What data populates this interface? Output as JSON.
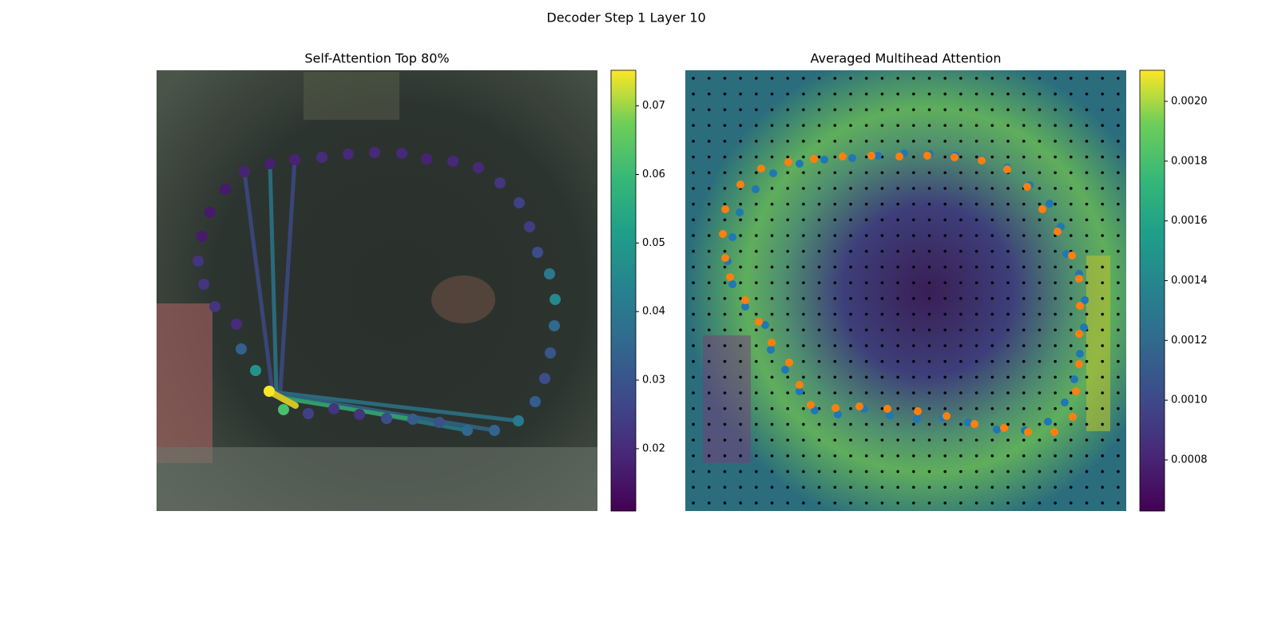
{
  "title": "Decoder Step 1 Layer 10",
  "chart_data": [
    {
      "type": "scatter",
      "title": "Self-Attention Top 80%",
      "x": [
        110,
        142,
        173,
        207,
        240,
        273,
        307,
        338,
        371,
        403,
        430,
        454,
        467,
        477,
        492,
        499,
        498,
        493,
        486,
        474,
        453,
        423,
        389,
        354,
        321,
        288,
        254,
        222,
        190,
        159,
        141,
        124,
        106,
        100,
        73,
        59,
        52,
        57,
        67,
        86
      ],
      "y": [
        127,
        117,
        112,
        109,
        105,
        103,
        104,
        111,
        114,
        122,
        141,
        166,
        196,
        228,
        255,
        287,
        320,
        354,
        386,
        415,
        439,
        451,
        451,
        441,
        437,
        436,
        431,
        424,
        430,
        425,
        402,
        376,
        349,
        318,
        296,
        268,
        239,
        208,
        178,
        149
      ],
      "values": [
        0.018,
        0.017,
        0.018,
        0.02,
        0.019,
        0.019,
        0.019,
        0.018,
        0.019,
        0.019,
        0.022,
        0.025,
        0.024,
        0.028,
        0.04,
        0.045,
        0.035,
        0.03,
        0.028,
        0.032,
        0.04,
        0.034,
        0.035,
        0.029,
        0.032,
        0.028,
        0.022,
        0.022,
        0.025,
        0.062,
        0.075,
        0.048,
        0.033,
        0.02,
        0.022,
        0.022,
        0.022,
        0.016,
        0.016,
        0.016
      ],
      "colorbar": {
        "lim": [
          0.0109,
          0.0752
        ],
        "ticks": [
          0.02,
          0.03,
          0.04,
          0.05,
          0.06,
          0.07
        ]
      }
    },
    {
      "type": "scatter",
      "title": "Averaged Multihead Attention",
      "series": [
        {
          "color": "#1f77b4",
          "x": [
            68,
            59,
            53,
            59,
            75,
            100,
            107,
            125,
            143,
            162,
            191,
            224,
            256,
            290,
            322,
            354,
            390,
            425,
            454,
            475,
            487,
            494,
            499,
            500,
            493,
            477,
            470,
            456,
            431,
            403,
            371,
            338,
            306,
            274,
            241,
            209,
            174,
            143,
            110,
            88
          ],
          "y": [
            178,
            209,
            239,
            268,
            296,
            319,
            350,
            375,
            402,
            426,
            431,
            424,
            432,
            437,
            435,
            441,
            450,
            451,
            440,
            416,
            387,
            355,
            322,
            288,
            255,
            230,
            196,
            167,
            144,
            122,
            112,
            107,
            105,
            104,
            107,
            110,
            112,
            117,
            129,
            149
          ]
        },
        {
          "color": "#ff7f0e",
          "x": [
            50,
            69,
            95,
            129,
            161,
            197,
            233,
            268,
            303,
            337,
            371,
            403,
            428,
            447,
            466,
            484,
            493,
            494,
            493,
            493,
            489,
            485,
            462,
            429,
            399,
            362,
            327,
            291,
            253,
            218,
            188,
            157,
            143,
            130,
            108,
            92,
            75,
            56,
            50,
            47
          ],
          "y": [
            174,
            143,
            123,
            115,
            111,
            108,
            107,
            108,
            107,
            109,
            113,
            124,
            146,
            174,
            202,
            232,
            261,
            295,
            330,
            368,
            402,
            434,
            453,
            453,
            448,
            443,
            433,
            427,
            424,
            421,
            423,
            419,
            394,
            366,
            341,
            315,
            288,
            259,
            235,
            205
          ]
        }
      ],
      "colorbar": {
        "lim": [
          0.000629,
          0.002104
        ],
        "ticks": [
          0.0008,
          {
            "value": 0.001,
            "label": "0.0010"
          },
          0.0012,
          0.0014,
          0.0016,
          0.0018,
          {
            "value": 0.002,
            "label": "0.0020"
          }
        ]
      }
    }
  ]
}
